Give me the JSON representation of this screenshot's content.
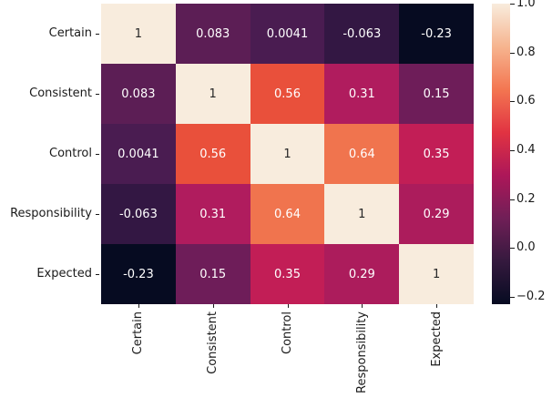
{
  "chart_data": {
    "type": "heatmap",
    "title": "",
    "colormap": "rocket",
    "grid": false,
    "legend": false,
    "categories": [
      "Certain",
      "Consistent",
      "Control",
      "Responsibility",
      "Expected"
    ],
    "x_tick_labels": [
      "Certain",
      "Consistent",
      "Control",
      "Responsibility",
      "Expected"
    ],
    "y_tick_labels": [
      "Certain",
      "Consistent",
      "Control",
      "Responsibility",
      "Expected"
    ],
    "matrix": [
      [
        1,
        0.083,
        0.0041,
        -0.063,
        -0.23
      ],
      [
        0.083,
        1,
        0.56,
        0.31,
        0.15
      ],
      [
        0.0041,
        0.56,
        1,
        0.64,
        0.35
      ],
      [
        -0.063,
        0.31,
        0.64,
        1,
        0.29
      ],
      [
        -0.23,
        0.15,
        0.35,
        0.29,
        1
      ]
    ],
    "cell_labels": [
      [
        "1",
        "0.083",
        "0.0041",
        "-0.063",
        "-0.23"
      ],
      [
        "0.083",
        "1",
        "0.56",
        "0.31",
        "0.15"
      ],
      [
        "0.0041",
        "0.56",
        "1",
        "0.64",
        "0.35"
      ],
      [
        "-0.063",
        "0.31",
        "0.64",
        "1",
        "0.29"
      ],
      [
        "-0.23",
        "0.15",
        "0.35",
        "0.29",
        "1"
      ]
    ],
    "cell_colors": [
      [
        "#F8ECDD",
        "#5C1E55",
        "#4A1C51",
        "#331743",
        "#060B21"
      ],
      [
        "#5C1E55",
        "#F8ECDD",
        "#E9503B",
        "#B01C5E",
        "#6E1D59"
      ],
      [
        "#4A1C51",
        "#E9503B",
        "#F8ECDD",
        "#F0744E",
        "#C21E56"
      ],
      [
        "#331743",
        "#B01C5E",
        "#F0744E",
        "#F8ECDD",
        "#AC1C5C"
      ],
      [
        "#060B21",
        "#6E1D59",
        "#C21E56",
        "#AC1C5C",
        "#F8ECDD"
      ]
    ],
    "cell_text_colors": [
      [
        "#262626",
        "#FFFFFF",
        "#FFFFFF",
        "#FFFFFF",
        "#FFFFFF"
      ],
      [
        "#FFFFFF",
        "#262626",
        "#FFFFFF",
        "#FFFFFF",
        "#FFFFFF"
      ],
      [
        "#FFFFFF",
        "#FFFFFF",
        "#262626",
        "#FFFFFF",
        "#FFFFFF"
      ],
      [
        "#FFFFFF",
        "#FFFFFF",
        "#FFFFFF",
        "#262626",
        "#FFFFFF"
      ],
      [
        "#FFFFFF",
        "#FFFFFF",
        "#FFFFFF",
        "#FFFFFF",
        "#262626"
      ]
    ],
    "colorbar": {
      "vmin": -0.23,
      "vmax": 1.0,
      "ticks": [
        {
          "label": "1.0",
          "value": 1.0
        },
        {
          "label": "0.8",
          "value": 0.8
        },
        {
          "label": "0.6",
          "value": 0.6
        },
        {
          "label": "0.4",
          "value": 0.4
        },
        {
          "label": "0.2",
          "value": 0.2
        },
        {
          "label": "0.0",
          "value": 0.0
        },
        {
          "label": "−0.2",
          "value": -0.2
        }
      ],
      "gradient_stops": [
        {
          "pos": 0,
          "color": "#F8ECDD"
        },
        {
          "pos": 14.3,
          "color": "#F6B48F"
        },
        {
          "pos": 28.6,
          "color": "#F37651"
        },
        {
          "pos": 42.9,
          "color": "#E13342"
        },
        {
          "pos": 57.1,
          "color": "#AD1759"
        },
        {
          "pos": 71.4,
          "color": "#701F57"
        },
        {
          "pos": 85.7,
          "color": "#35193E"
        },
        {
          "pos": 100,
          "color": "#060B21"
        }
      ]
    },
    "axis_color": "#1a1a1a"
  }
}
